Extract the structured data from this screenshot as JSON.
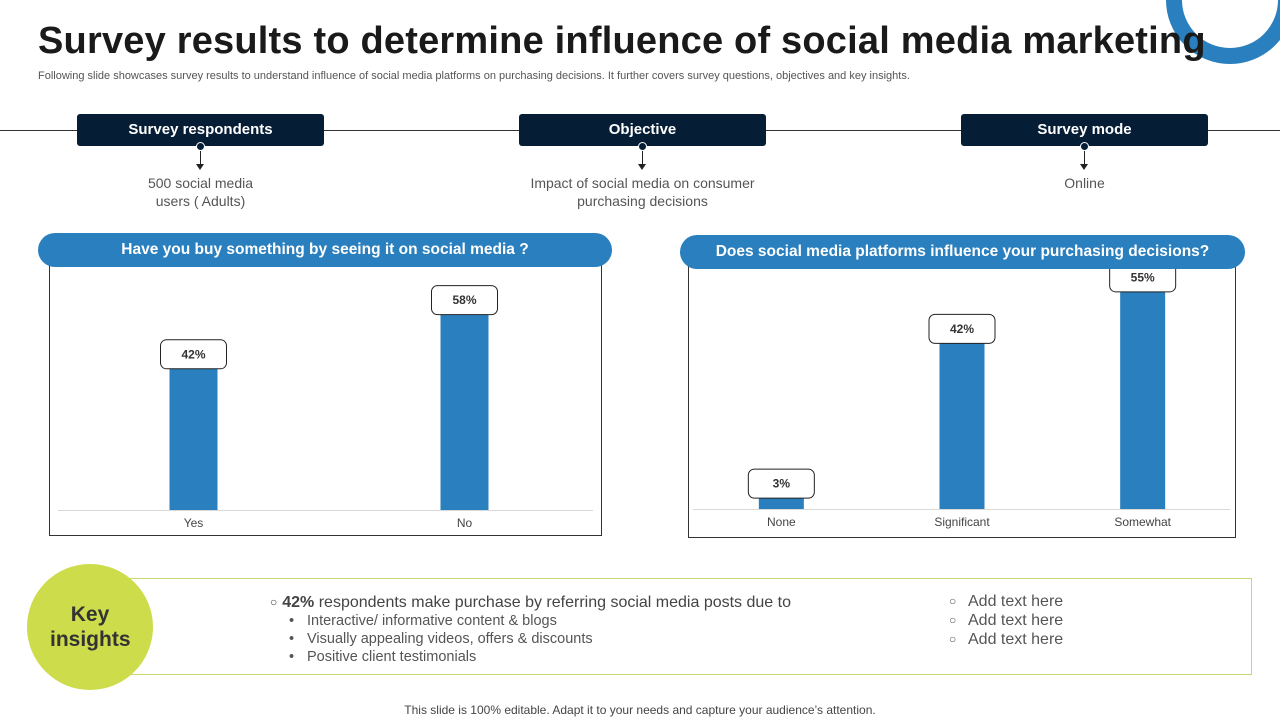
{
  "title": "Survey results to determine influence of social media marketing",
  "subtitle": "Following slide showcases survey results to understand influence of social media platforms on purchasing decisions. It further covers survey questions, objectives and key insights.",
  "colors": {
    "dark_navy": "#061d36",
    "bar_blue": "#2a7fbe",
    "key_green": "#cddc4a"
  },
  "survey_info": [
    {
      "label": "Survey respondents",
      "value": "500 social media users ( Adults)"
    },
    {
      "label": "Objective",
      "value": "Impact of social media on consumer purchasing decisions"
    },
    {
      "label": "Survey mode",
      "value": "Online"
    }
  ],
  "chart_data": [
    {
      "type": "bar",
      "title": "Have you buy something by seeing it on social media ?",
      "categories": [
        "Yes",
        "No"
      ],
      "values": [
        42,
        58
      ],
      "data_labels": [
        "42%",
        "58%"
      ],
      "ylim": [
        0,
        70
      ],
      "grid": false
    },
    {
      "type": "bar",
      "title": "Does social media platforms influence your purchasing decisions?",
      "categories": [
        "None",
        "Significant",
        "Somewhat"
      ],
      "values": [
        3,
        42,
        55
      ],
      "data_labels": [
        "3%",
        "42%",
        "55%"
      ],
      "ylim": [
        0,
        60
      ],
      "grid": false
    }
  ],
  "insights": {
    "badge": "Key insights",
    "main_pct": "42%",
    "main_text": " respondents make purchase by referring social media posts due to",
    "sub_points": [
      "Interactive/ informative content & blogs",
      "Visually appealing videos, offers & discounts",
      "Positive client testimonials"
    ],
    "right_points": [
      "Add text here",
      "Add text here",
      "Add text here"
    ]
  },
  "footer": "This slide is 100% editable. Adapt it to your needs and capture your audience’s attention."
}
